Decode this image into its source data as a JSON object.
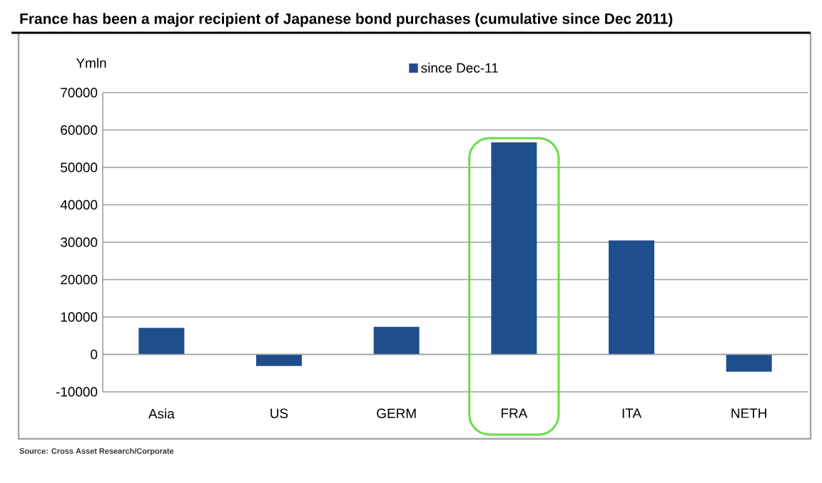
{
  "chart_data": {
    "type": "bar",
    "title": "France  has been a major recipient of Japanese bond purchases (cumulative since Dec 2011)",
    "ylabel": "Ymln",
    "categories": [
      "Asia",
      "US",
      "GERM",
      "FRA",
      "ITA",
      "NETH"
    ],
    "series": [
      {
        "name": "since Dec-11",
        "color": "#1f4e8c",
        "values": [
          7100,
          -3100,
          7400,
          56700,
          30500,
          -4600
        ]
      }
    ],
    "ylim": [
      -10000,
      70000
    ],
    "yticks": [
      -10000,
      0,
      10000,
      20000,
      30000,
      40000,
      50000,
      60000,
      70000
    ],
    "grid": "y",
    "legend": "top",
    "annotations": [
      "Source: Cross Asset Research/Corporate"
    ]
  }
}
